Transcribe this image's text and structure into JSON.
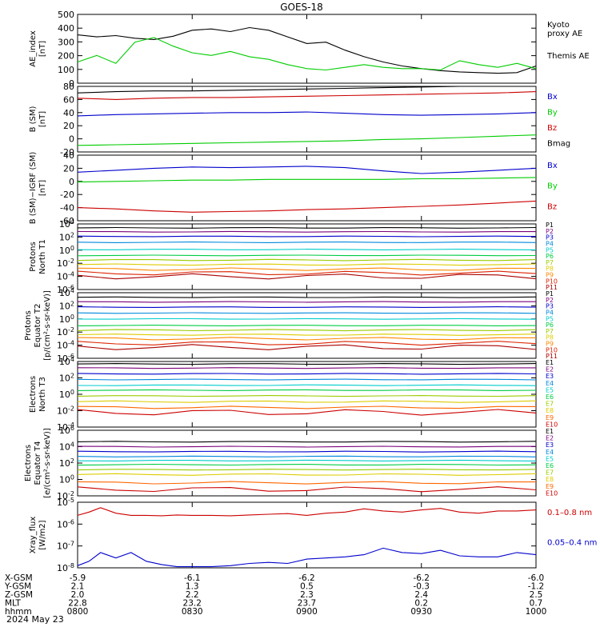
{
  "title": "GOES-18",
  "date_label": "2024 May 23",
  "colors": {
    "black": "#000000",
    "red": "#cc0000",
    "green": "#00cc00",
    "blue": "#0000cc",
    "ramp11": [
      "#000000",
      "#7a007a",
      "#0000cc",
      "#0088dd",
      "#00cccc",
      "#00cc44",
      "#99cc00",
      "#ddcc00",
      "#ff8800",
      "#dd2200",
      "#aa0000"
    ],
    "ramp10": [
      "#000000",
      "#7a007a",
      "#0000cc",
      "#0088dd",
      "#00cccc",
      "#00cc44",
      "#99cc00",
      "#ddcc00",
      "#ff6600",
      "#cc0000"
    ]
  },
  "x_axis": {
    "ticks": [
      "0800",
      "0830",
      "0900",
      "0930",
      "1000"
    ],
    "rows": [
      {
        "label": "X-GSM",
        "values": [
          "-5.9",
          "-6.1",
          "-6.2",
          "-6.2",
          "-6.0"
        ]
      },
      {
        "label": "Y-GSM",
        "values": [
          "2.1",
          "1.3",
          "0.5",
          "-0.3",
          "-1.2"
        ]
      },
      {
        "label": "Z-GSM",
        "values": [
          "2.0",
          "2.2",
          "2.3",
          "2.4",
          "2.5"
        ]
      },
      {
        "label": "MLT",
        "values": [
          "22.8",
          "23.2",
          "23.7",
          "0.2",
          "0.7"
        ]
      },
      {
        "label": "hhmm",
        "values": [
          "0800",
          "0830",
          "0900",
          "0930",
          "1000"
        ]
      }
    ]
  },
  "chart_data": [
    {
      "type": "line",
      "ylabel": "AE_index\n[nT]",
      "ylim": [
        0,
        520
      ],
      "yscale": "linear",
      "yticks": [
        "0",
        "100",
        "200",
        "300",
        "400",
        "500"
      ],
      "legend": [
        "Kyoto\nproxy AE",
        "Themis AE"
      ],
      "x": [
        0,
        5,
        10,
        15,
        20,
        25,
        30,
        35,
        40,
        45,
        50,
        55,
        60,
        65,
        70,
        75,
        80,
        85,
        90,
        95,
        100,
        105,
        110,
        115,
        120
      ],
      "series": [
        {
          "name": "Themis AE",
          "color": "black",
          "values": [
            365,
            350,
            360,
            340,
            330,
            355,
            400,
            410,
            390,
            420,
            400,
            350,
            300,
            310,
            250,
            200,
            160,
            130,
            110,
            95,
            85,
            80,
            75,
            80,
            130
          ]
        },
        {
          "name": "Kyoto proxy AE",
          "color": "green",
          "values": [
            160,
            210,
            150,
            310,
            345,
            280,
            230,
            210,
            240,
            200,
            180,
            140,
            110,
            100,
            120,
            140,
            120,
            110,
            110,
            100,
            170,
            140,
            120,
            150,
            110
          ]
        }
      ]
    },
    {
      "type": "line",
      "ylabel": "B (SM)\n[nT]",
      "ylim": [
        -20,
        80
      ],
      "yscale": "linear",
      "yticks": [
        "-20",
        "0",
        "20",
        "40",
        "60",
        "80"
      ],
      "legend": [
        "Bx",
        "By",
        "Bz",
        "Bmag"
      ],
      "x": [
        0,
        10,
        20,
        30,
        40,
        50,
        60,
        70,
        80,
        90,
        100,
        110,
        120
      ],
      "series": [
        {
          "name": "Bmag",
          "color": "black",
          "values": [
            70,
            72,
            73,
            73,
            74,
            75,
            76,
            77,
            78,
            79,
            80,
            82,
            83
          ]
        },
        {
          "name": "Bz",
          "color": "red",
          "values": [
            62,
            60,
            62,
            63,
            63,
            64,
            65,
            66,
            67,
            68,
            69,
            70,
            72
          ]
        },
        {
          "name": "Bx",
          "color": "blue",
          "values": [
            35,
            37,
            38,
            39,
            40,
            40,
            41,
            39,
            37,
            36,
            37,
            38,
            40
          ]
        },
        {
          "name": "By",
          "color": "green",
          "values": [
            -10,
            -9,
            -8,
            -7,
            -6,
            -5,
            -4,
            -3,
            -1,
            0,
            2,
            4,
            6
          ]
        }
      ]
    },
    {
      "type": "line",
      "ylabel": "B (SM)−IGRF (SM)\n[nT]",
      "ylim": [
        -60,
        40
      ],
      "yscale": "linear",
      "yticks": [
        "-60",
        "-40",
        "-20",
        "0",
        "20",
        "40"
      ],
      "legend": [
        "Bx",
        "By",
        "Bz"
      ],
      "x": [
        0,
        10,
        20,
        30,
        40,
        50,
        60,
        70,
        80,
        90,
        100,
        110,
        120
      ],
      "series": [
        {
          "name": "Bx",
          "color": "blue",
          "values": [
            14,
            17,
            20,
            22,
            21,
            22,
            23,
            21,
            16,
            12,
            14,
            17,
            20
          ]
        },
        {
          "name": "By",
          "color": "green",
          "values": [
            -1,
            0,
            1,
            2,
            2,
            3,
            3,
            3,
            3,
            4,
            4,
            5,
            6
          ]
        },
        {
          "name": "Bz",
          "color": "red",
          "values": [
            -40,
            -42,
            -45,
            -47,
            -46,
            -45,
            -43,
            -42,
            -40,
            -38,
            -36,
            -33,
            -30
          ]
        }
      ]
    },
    {
      "type": "line",
      "ylabel": "Protons\nNorth T1",
      "ylim": [
        -6,
        4
      ],
      "yscale": "log",
      "yticks": [
        "10^-6",
        "10^-4",
        "10^-2",
        "10^0",
        "10^2",
        "10^4"
      ],
      "legend": [
        "P1",
        "P2",
        "P3",
        "P4",
        "P5",
        "P6",
        "P7",
        "P8",
        "P9",
        "P10",
        "P11"
      ],
      "x": [
        0,
        10,
        20,
        30,
        40,
        50,
        60,
        70,
        80,
        90,
        100,
        110,
        120
      ],
      "levels": [
        3.4,
        2.8,
        2.1,
        1.2,
        0.1,
        -0.8,
        -1.5,
        -2.2,
        -2.9,
        -3.5,
        -4.0
      ],
      "noise": [
        0.05,
        0.05,
        0.05,
        0.05,
        0.05,
        0.05,
        0.1,
        0.1,
        0.2,
        0.3,
        0.4
      ]
    },
    {
      "type": "line",
      "ylabel": "Protons\nEquator T2\n[p/(cm²-s-sr-keV)]",
      "ylim": [
        -6,
        4
      ],
      "yscale": "log",
      "yticks": [
        "10^-6",
        "10^-4",
        "10^-2",
        "10^0",
        "10^2",
        "10^4"
      ],
      "legend": [
        "P1",
        "P2",
        "P3",
        "P4",
        "P5",
        "P6",
        "P7",
        "P8",
        "P9",
        "P10",
        "P11"
      ],
      "x": [
        0,
        10,
        20,
        30,
        40,
        50,
        60,
        70,
        80,
        90,
        100,
        110,
        120
      ],
      "levels": [
        3.3,
        2.6,
        1.8,
        0.9,
        0.0,
        -1.0,
        -1.7,
        -2.4,
        -3.0,
        -3.7,
        -4.3
      ],
      "noise": [
        0.05,
        0.05,
        0.05,
        0.05,
        0.05,
        0.05,
        0.1,
        0.1,
        0.2,
        0.3,
        0.4
      ]
    },
    {
      "type": "line",
      "ylabel": "Electrons\nNorth T3",
      "ylim": [
        -4,
        4
      ],
      "yscale": "log",
      "yticks": [
        "10^-4",
        "10^-2",
        "10^0",
        "10^2",
        "10^4"
      ],
      "legend": [
        "E1",
        "E2",
        "E3",
        "E4",
        "E5",
        "E6",
        "E7",
        "E8",
        "E9",
        "E10"
      ],
      "x": [
        0,
        10,
        20,
        30,
        40,
        50,
        60,
        70,
        80,
        90,
        100,
        110,
        120
      ],
      "levels": [
        3.7,
        3.2,
        2.5,
        1.8,
        1.1,
        0.5,
        -0.2,
        -0.9,
        -1.6,
        -2.2
      ],
      "noise": [
        0.05,
        0.05,
        0.05,
        0.05,
        0.05,
        0.05,
        0.05,
        0.1,
        0.15,
        0.35
      ]
    },
    {
      "type": "line",
      "ylabel": "Electrons\nEquator T4\n[e/(cm²-s-sr-keV)]",
      "ylim": [
        -2,
        6
      ],
      "yscale": "log",
      "yticks": [
        "10^-2",
        "10^0",
        "10^2",
        "10^4",
        "10^6"
      ],
      "legend": [
        "E1",
        "E2",
        "E3",
        "E4",
        "E5",
        "E6",
        "E7",
        "E8",
        "E9",
        "E10"
      ],
      "x": [
        0,
        10,
        20,
        30,
        40,
        50,
        60,
        70,
        80,
        90,
        100,
        110,
        120
      ],
      "levels": [
        4.6,
        4.0,
        3.4,
        2.8,
        2.3,
        1.8,
        1.2,
        0.6,
        -0.4,
        -1.2
      ],
      "noise": [
        0.05,
        0.05,
        0.05,
        0.05,
        0.05,
        0.05,
        0.05,
        0.1,
        0.15,
        0.3
      ]
    },
    {
      "type": "line",
      "ylabel": "Xray_flux\n[W/m2]",
      "ylim": [
        -8,
        -5
      ],
      "yscale": "log",
      "yticks": [
        "10^-8",
        "10^-7",
        "10^-6",
        "10^-5"
      ],
      "legend": [
        "0.1–0.8 nm",
        "0.05–0.4 nm"
      ],
      "x": [
        0,
        3,
        6,
        10,
        14,
        18,
        22,
        26,
        30,
        35,
        40,
        45,
        50,
        55,
        60,
        65,
        70,
        75,
        80,
        85,
        90,
        95,
        100,
        105,
        110,
        115,
        120
      ],
      "series": [
        {
          "name": "0.1–0.8 nm",
          "color": "red",
          "values": [
            -5.6,
            -5.45,
            -5.25,
            -5.5,
            -5.6,
            -5.6,
            -5.62,
            -5.58,
            -5.6,
            -5.6,
            -5.62,
            -5.58,
            -5.55,
            -5.52,
            -5.6,
            -5.5,
            -5.45,
            -5.3,
            -5.4,
            -5.45,
            -5.35,
            -5.28,
            -5.45,
            -5.5,
            -5.4,
            -5.4,
            -5.35
          ]
        },
        {
          "name": "0.05–0.4 nm",
          "color": "blue",
          "values": [
            -7.9,
            -7.7,
            -7.3,
            -7.55,
            -7.3,
            -7.7,
            -7.85,
            -7.95,
            -7.95,
            -7.95,
            -7.9,
            -7.8,
            -7.75,
            -7.8,
            -7.6,
            -7.55,
            -7.5,
            -7.4,
            -7.1,
            -7.3,
            -7.35,
            -7.2,
            -7.45,
            -7.5,
            -7.5,
            -7.3,
            -7.4
          ]
        }
      ]
    }
  ]
}
